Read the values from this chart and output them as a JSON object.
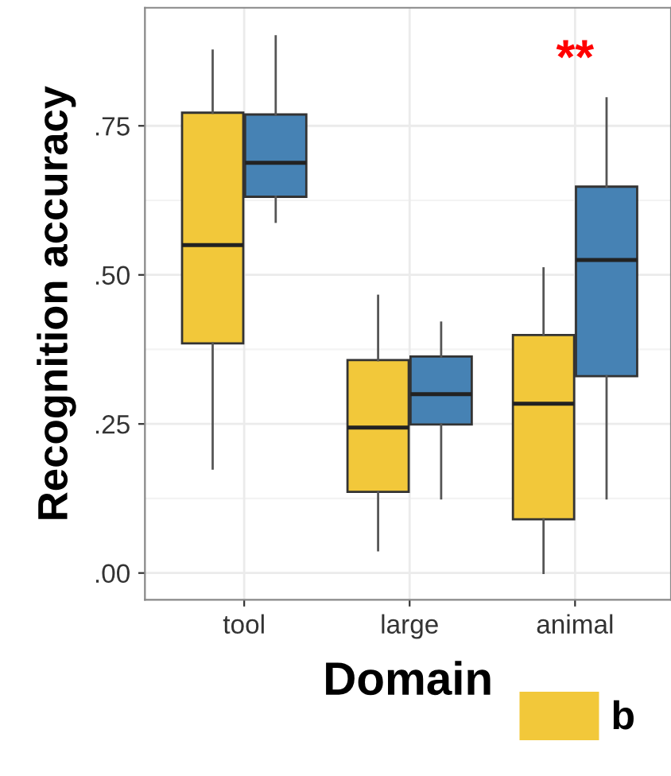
{
  "chart_data": {
    "type": "box",
    "xlabel": "Domain",
    "ylabel": "Recognition accuracy",
    "categories": [
      "tool",
      "large",
      "animal"
    ],
    "series": [
      {
        "name": "b",
        "color": "#f2c83a",
        "boxes": [
          {
            "low": 0.175,
            "q1": 0.385,
            "median": 0.55,
            "q3": 0.772,
            "high": 0.876
          },
          {
            "low": 0.038,
            "q1": 0.136,
            "median": 0.244,
            "q3": 0.357,
            "high": 0.465
          },
          {
            "low": 0.0,
            "q1": 0.09,
            "median": 0.284,
            "q3": 0.399,
            "high": 0.511
          }
        ]
      },
      {
        "color": "#4682b4",
        "boxes": [
          {
            "low": 0.589,
            "q1": 0.631,
            "median": 0.688,
            "q3": 0.769,
            "high": 0.9
          },
          {
            "low": 0.125,
            "q1": 0.249,
            "median": 0.3,
            "q3": 0.363,
            "high": 0.42
          },
          {
            "low": 0.125,
            "q1": 0.33,
            "median": 0.525,
            "q3": 0.648,
            "high": 0.796
          }
        ]
      }
    ],
    "ylim": [
      -0.045,
      0.948
    ],
    "yticks": [
      {
        "value": 0,
        "label": ".00"
      },
      {
        "value": 0.25,
        "label": ".25"
      },
      {
        "value": 0.5,
        "label": ".50"
      },
      {
        "value": 0.75,
        "label": ".75"
      }
    ],
    "grid": true,
    "legend": "bottom",
    "annotations": [
      "**"
    ]
  }
}
